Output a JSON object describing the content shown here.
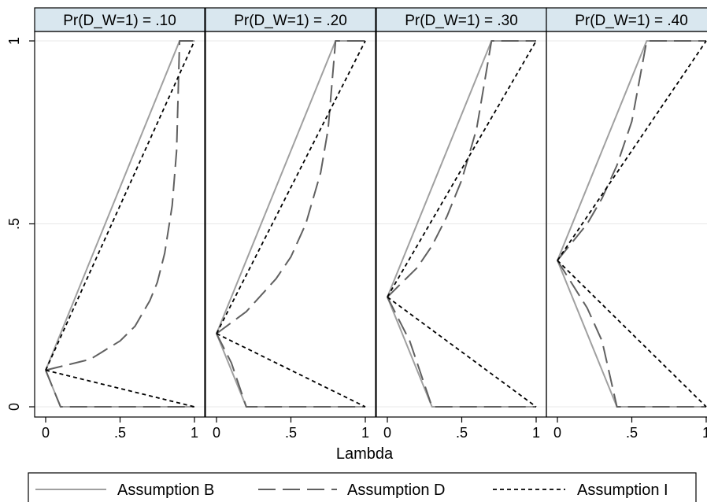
{
  "chart_data": {
    "type": "line",
    "xlabel": "Lambda",
    "ylabel": "",
    "xlim": [
      0,
      1
    ],
    "ylim": [
      0,
      1
    ],
    "x_ticks": [
      {
        "value": 0,
        "label": "0"
      },
      {
        "value": 0.5,
        "label": ".5"
      },
      {
        "value": 1,
        "label": "1"
      }
    ],
    "y_ticks": [
      {
        "value": 0,
        "label": "0"
      },
      {
        "value": 0.5,
        "label": ".5"
      },
      {
        "value": 1,
        "label": "1"
      }
    ],
    "grid": "horizontal",
    "legend_position": "bottom",
    "legend": [
      {
        "name": "Assumption B",
        "style": "solid",
        "color": "#a0a0a0"
      },
      {
        "name": "Assumption D",
        "style": "long-dash",
        "color": "#606060"
      },
      {
        "name": "Assumption I",
        "style": "short-dash",
        "color": "#000000"
      }
    ],
    "panels": [
      {
        "title": "Pr(D_W=1) = .10",
        "series": [
          {
            "name": "Assumption B",
            "points": [
              [
                0,
                0.1
              ],
              [
                0.9,
                1
              ],
              [
                1,
                1
              ]
            ]
          },
          {
            "name": "Assumption B",
            "points": [
              [
                0,
                0.1
              ],
              [
                0.1,
                0
              ],
              [
                1,
                0
              ]
            ]
          },
          {
            "name": "Assumption D",
            "points": [
              [
                0,
                0.1
              ],
              [
                0.3,
                0.13
              ],
              [
                0.5,
                0.18
              ],
              [
                0.6,
                0.22
              ],
              [
                0.7,
                0.29
              ],
              [
                0.75,
                0.34
              ],
              [
                0.8,
                0.42
              ],
              [
                0.85,
                0.55
              ],
              [
                0.88,
                0.7
              ],
              [
                0.9,
                1
              ],
              [
                1,
                1
              ]
            ]
          },
          {
            "name": "Assumption D",
            "points": [
              [
                0,
                0.1
              ],
              [
                0.1,
                0
              ],
              [
                1,
                0
              ]
            ]
          },
          {
            "name": "Assumption I",
            "points": [
              [
                0,
                0.1
              ],
              [
                1,
                1
              ]
            ]
          },
          {
            "name": "Assumption I",
            "points": [
              [
                0,
                0.1
              ],
              [
                1,
                0
              ]
            ]
          }
        ]
      },
      {
        "title": "Pr(D_W=1) = .20",
        "series": [
          {
            "name": "Assumption B",
            "points": [
              [
                0,
                0.2
              ],
              [
                0.8,
                1
              ],
              [
                1,
                1
              ]
            ]
          },
          {
            "name": "Assumption B",
            "points": [
              [
                0,
                0.2
              ],
              [
                0.2,
                0
              ],
              [
                1,
                0
              ]
            ]
          },
          {
            "name": "Assumption D",
            "points": [
              [
                0,
                0.2
              ],
              [
                0.2,
                0.26
              ],
              [
                0.4,
                0.35
              ],
              [
                0.5,
                0.41
              ],
              [
                0.6,
                0.5
              ],
              [
                0.7,
                0.64
              ],
              [
                0.75,
                0.76
              ],
              [
                0.8,
                1
              ],
              [
                1,
                1
              ]
            ]
          },
          {
            "name": "Assumption D",
            "points": [
              [
                0,
                0.2
              ],
              [
                0.1,
                0.12
              ],
              [
                0.2,
                0
              ],
              [
                1,
                0
              ]
            ]
          },
          {
            "name": "Assumption I",
            "points": [
              [
                0,
                0.2
              ],
              [
                1,
                1
              ]
            ]
          },
          {
            "name": "Assumption I",
            "points": [
              [
                0,
                0.2
              ],
              [
                1,
                0
              ]
            ]
          }
        ]
      },
      {
        "title": "Pr(D_W=1) = .30",
        "series": [
          {
            "name": "Assumption B",
            "points": [
              [
                0,
                0.3
              ],
              [
                0.7,
                1
              ],
              [
                1,
                1
              ]
            ]
          },
          {
            "name": "Assumption B",
            "points": [
              [
                0,
                0.3
              ],
              [
                0.3,
                0
              ],
              [
                1,
                0
              ]
            ]
          },
          {
            "name": "Assumption D",
            "points": [
              [
                0,
                0.3
              ],
              [
                0.2,
                0.38
              ],
              [
                0.3,
                0.44
              ],
              [
                0.4,
                0.52
              ],
              [
                0.5,
                0.62
              ],
              [
                0.6,
                0.76
              ],
              [
                0.7,
                1
              ],
              [
                1,
                1
              ]
            ]
          },
          {
            "name": "Assumption D",
            "points": [
              [
                0,
                0.3
              ],
              [
                0.15,
                0.18
              ],
              [
                0.3,
                0
              ],
              [
                1,
                0
              ]
            ]
          },
          {
            "name": "Assumption I",
            "points": [
              [
                0,
                0.3
              ],
              [
                1,
                1
              ]
            ]
          },
          {
            "name": "Assumption I",
            "points": [
              [
                0,
                0.3
              ],
              [
                1,
                0
              ]
            ]
          }
        ]
      },
      {
        "title": "Pr(D_W=1) = .40",
        "series": [
          {
            "name": "Assumption B",
            "points": [
              [
                0,
                0.4
              ],
              [
                0.6,
                1
              ],
              [
                1,
                1
              ]
            ]
          },
          {
            "name": "Assumption B",
            "points": [
              [
                0,
                0.4
              ],
              [
                0.4,
                0
              ],
              [
                1,
                0
              ]
            ]
          },
          {
            "name": "Assumption D",
            "points": [
              [
                0,
                0.4
              ],
              [
                0.2,
                0.5
              ],
              [
                0.3,
                0.57
              ],
              [
                0.4,
                0.66
              ],
              [
                0.5,
                0.78
              ],
              [
                0.6,
                1
              ],
              [
                1,
                1
              ]
            ]
          },
          {
            "name": "Assumption D",
            "points": [
              [
                0,
                0.4
              ],
              [
                0.2,
                0.27
              ],
              [
                0.3,
                0.18
              ],
              [
                0.4,
                0
              ],
              [
                1,
                0
              ]
            ]
          },
          {
            "name": "Assumption I",
            "points": [
              [
                0,
                0.4
              ],
              [
                1,
                1
              ]
            ]
          },
          {
            "name": "Assumption I",
            "points": [
              [
                0,
                0.4
              ],
              [
                1,
                0
              ]
            ]
          }
        ]
      }
    ]
  }
}
